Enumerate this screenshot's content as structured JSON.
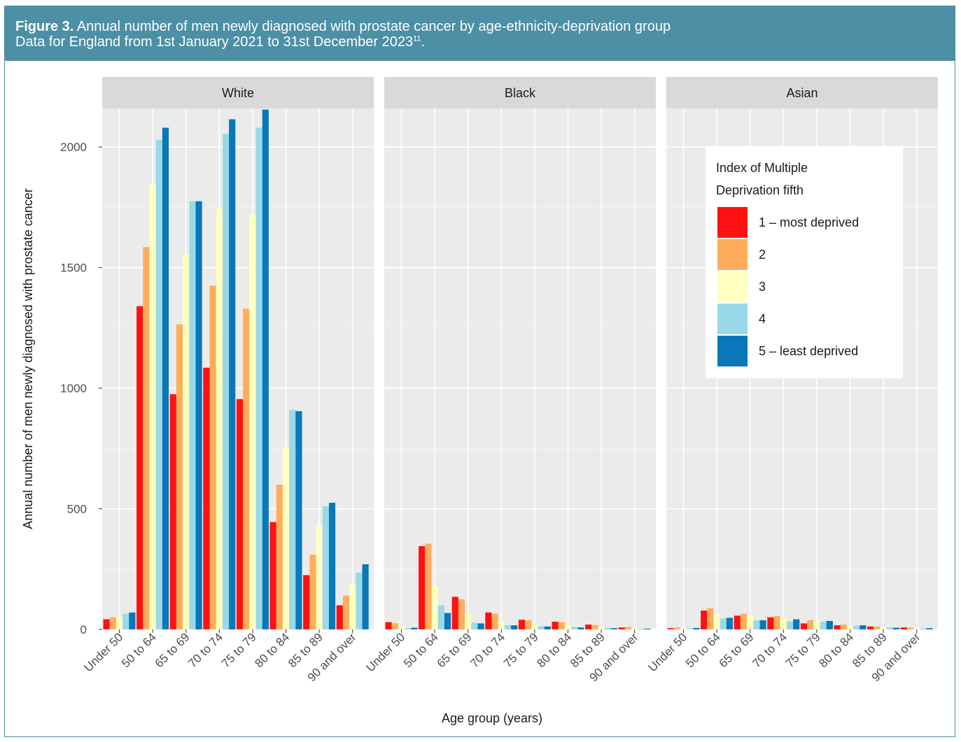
{
  "figure": {
    "label": "Figure 3.",
    "title": " Annual number of men newly diagnosed with prostate cancer by age-ethnicity-deprivation group",
    "subtitle": "Data for England from 1st January 2021 to 31st December 2023",
    "footnote_ref": "11",
    "subtitle_end": ".",
    "header_color": "#4d8fa5"
  },
  "chart_data": {
    "type": "bar",
    "xlabel": "Age group (years)",
    "ylabel": "Annual number of men newly diagnosed with prostate cancer",
    "ylim": [
      0,
      2160
    ],
    "yticks": [
      0,
      500,
      1000,
      1500,
      2000
    ],
    "grid": true,
    "categories": [
      "Under 50",
      "50 to 64",
      "65 to 69",
      "70 to 74",
      "75 to 79",
      "80 to 84",
      "85 to 89",
      "90 and over"
    ],
    "panels": [
      {
        "name": "White",
        "series": [
          {
            "name": "1 – most deprived",
            "values": [
              42,
              1340,
              975,
              1085,
              955,
              445,
              225,
              100
            ]
          },
          {
            "name": "2",
            "values": [
              50,
              1585,
              1265,
              1425,
              1330,
              600,
              310,
              140
            ]
          },
          {
            "name": "3",
            "values": [
              50,
              1845,
              1555,
              1745,
              1720,
              755,
              430,
              185
            ]
          },
          {
            "name": "4",
            "values": [
              65,
              2030,
              1775,
              2055,
              2080,
              910,
              510,
              235
            ]
          },
          {
            "name": "5 – least deprived",
            "values": [
              70,
              2080,
              1775,
              2115,
              2155,
              905,
              525,
              270
            ]
          }
        ]
      },
      {
        "name": "Black",
        "series": [
          {
            "name": "1 – most deprived",
            "values": [
              30,
              345,
              135,
              70,
              40,
              32,
              20,
              8
            ]
          },
          {
            "name": "2",
            "values": [
              25,
              355,
              125,
              65,
              38,
              30,
              18,
              10
            ]
          },
          {
            "name": "3",
            "values": [
              10,
              180,
              65,
              35,
              20,
              18,
              10,
              6
            ]
          },
          {
            "name": "4",
            "values": [
              5,
              100,
              28,
              18,
              12,
              10,
              6,
              3
            ]
          },
          {
            "name": "5 – least deprived",
            "values": [
              7,
              68,
              25,
              17,
              12,
              8,
              5,
              3
            ]
          }
        ]
      },
      {
        "name": "Asian",
        "series": [
          {
            "name": "1 – most deprived",
            "values": [
              5,
              78,
              57,
              50,
              25,
              17,
              12,
              8
            ]
          },
          {
            "name": "2",
            "values": [
              8,
              88,
              65,
              55,
              38,
              20,
              12,
              7
            ]
          },
          {
            "name": "3",
            "values": [
              3,
              62,
              60,
              48,
              35,
              15,
              9,
              5
            ]
          },
          {
            "name": "4",
            "values": [
              4,
              45,
              37,
              33,
              32,
              15,
              8,
              4
            ]
          },
          {
            "name": "5 – least deprived",
            "values": [
              6,
              48,
              38,
              42,
              35,
              17,
              7,
              5
            ]
          }
        ]
      }
    ],
    "legend": {
      "title_line1": "Index of Multiple",
      "title_line2": "Deprivation fifth",
      "placement": "inside-right of Asian panel",
      "entries": [
        "1 – most deprived",
        "2",
        "3",
        "4",
        "5 – least deprived"
      ]
    },
    "colors": [
      "#ff1111",
      "#ffad5c",
      "#ffffc0",
      "#9ad9ea",
      "#0a78b8"
    ]
  }
}
